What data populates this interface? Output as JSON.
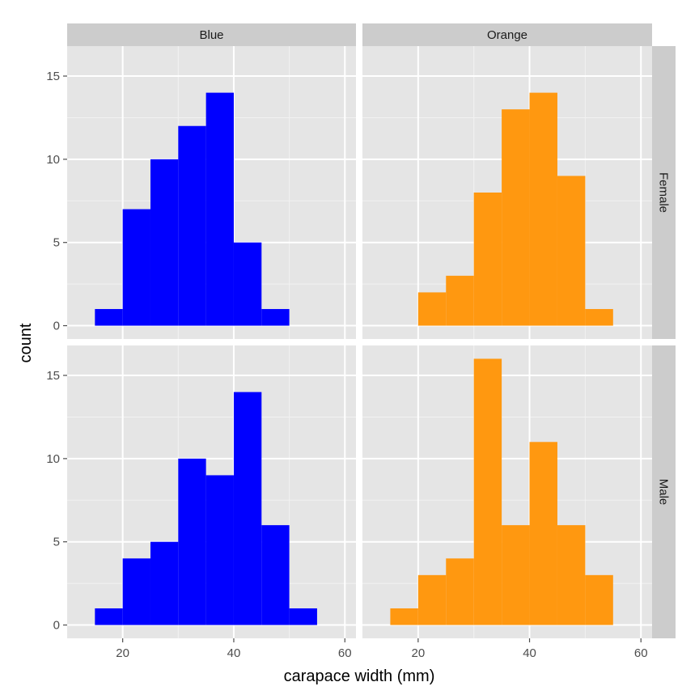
{
  "chart_data": {
    "type": "bar",
    "subtype": "faceted-histogram",
    "xlabel": "carapace width (mm)",
    "ylabel": "count",
    "xlim": [
      10,
      62
    ],
    "ylim": [
      -0.8,
      16.8
    ],
    "x_ticks": [
      20,
      40,
      60
    ],
    "y_ticks": [
      0,
      5,
      10,
      15
    ],
    "bin_width": 5,
    "grid": true,
    "legend": "none",
    "column_facets": [
      "Blue",
      "Orange"
    ],
    "row_facets": [
      "Female",
      "Male"
    ],
    "colors": {
      "Blue": "#0000ff",
      "Orange": "#ff9810",
      "panel_background": "#e5e5e5",
      "strip_background": "#cccccc",
      "grid": "#ffffff"
    },
    "panels": [
      {
        "col": "Blue",
        "row": "Female",
        "bins": [
          {
            "x0": 15,
            "x1": 20,
            "count": 1
          },
          {
            "x0": 20,
            "x1": 25,
            "count": 7
          },
          {
            "x0": 25,
            "x1": 30,
            "count": 10
          },
          {
            "x0": 30,
            "x1": 35,
            "count": 12
          },
          {
            "x0": 35,
            "x1": 40,
            "count": 14
          },
          {
            "x0": 40,
            "x1": 45,
            "count": 5
          },
          {
            "x0": 45,
            "x1": 50,
            "count": 1
          }
        ]
      },
      {
        "col": "Orange",
        "row": "Female",
        "bins": [
          {
            "x0": 20,
            "x1": 25,
            "count": 2
          },
          {
            "x0": 25,
            "x1": 30,
            "count": 3
          },
          {
            "x0": 30,
            "x1": 35,
            "count": 8
          },
          {
            "x0": 35,
            "x1": 40,
            "count": 13
          },
          {
            "x0": 40,
            "x1": 45,
            "count": 14
          },
          {
            "x0": 45,
            "x1": 50,
            "count": 9
          },
          {
            "x0": 50,
            "x1": 55,
            "count": 1
          }
        ]
      },
      {
        "col": "Blue",
        "row": "Male",
        "bins": [
          {
            "x0": 15,
            "x1": 20,
            "count": 1
          },
          {
            "x0": 20,
            "x1": 25,
            "count": 4
          },
          {
            "x0": 25,
            "x1": 30,
            "count": 5
          },
          {
            "x0": 30,
            "x1": 35,
            "count": 10
          },
          {
            "x0": 35,
            "x1": 40,
            "count": 9
          },
          {
            "x0": 40,
            "x1": 45,
            "count": 14
          },
          {
            "x0": 45,
            "x1": 50,
            "count": 6
          },
          {
            "x0": 50,
            "x1": 55,
            "count": 1
          }
        ]
      },
      {
        "col": "Orange",
        "row": "Male",
        "bins": [
          {
            "x0": 15,
            "x1": 20,
            "count": 1
          },
          {
            "x0": 20,
            "x1": 25,
            "count": 3
          },
          {
            "x0": 25,
            "x1": 30,
            "count": 4
          },
          {
            "x0": 30,
            "x1": 35,
            "count": 16
          },
          {
            "x0": 35,
            "x1": 40,
            "count": 6
          },
          {
            "x0": 40,
            "x1": 45,
            "count": 11
          },
          {
            "x0": 45,
            "x1": 50,
            "count": 6
          },
          {
            "x0": 50,
            "x1": 55,
            "count": 3
          }
        ]
      }
    ]
  }
}
